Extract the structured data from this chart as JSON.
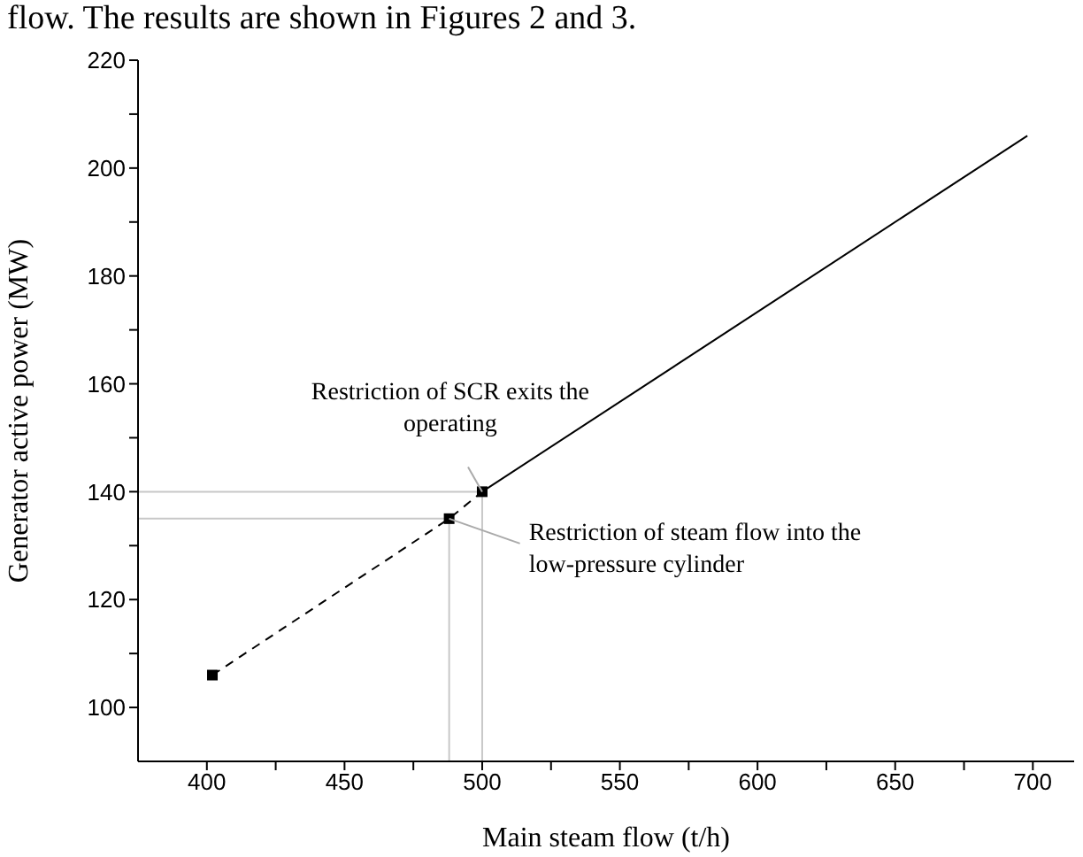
{
  "chart_data": {
    "type": "line",
    "xlabel": "Main steam flow (t/h)",
    "ylabel": "Generator active power (MW)",
    "xlim": [
      375,
      715
    ],
    "ylim": [
      90,
      220
    ],
    "xticks": [
      400,
      {
        "value": 425,
        "label": null
      },
      450,
      {
        "value": 475,
        "label": null
      },
      500,
      {
        "value": 525,
        "label": null
      },
      550,
      {
        "value": 575,
        "label": null
      },
      600,
      {
        "value": 625,
        "label": null
      },
      650,
      {
        "value": 675,
        "label": null
      },
      700
    ],
    "yticks": [
      100,
      {
        "value": 110,
        "label": null
      },
      120,
      {
        "value": 130,
        "label": null
      },
      140,
      {
        "value": 150,
        "label": null
      },
      160,
      {
        "value": 170,
        "label": null
      },
      180,
      {
        "value": 190,
        "label": null
      },
      200,
      {
        "value": 210,
        "label": null
      },
      220
    ],
    "series": [
      {
        "color": "#000000",
        "x": [
          402,
          488,
          500
        ],
        "values": [
          106,
          135,
          140
        ],
        "line_style": "dashed",
        "marker": "square"
      },
      {
        "color": "#000000",
        "x": [
          500,
          698
        ],
        "values": [
          140,
          206
        ],
        "line_style": "solid",
        "marker": "none"
      }
    ],
    "ref_lines": [
      {
        "axis": "y",
        "value": 140,
        "color": "#c8c8c8"
      },
      {
        "axis": "y",
        "value": 135,
        "color": "#c8c8c8"
      },
      {
        "axis": "x",
        "value": 488,
        "color": "#c8c8c8"
      },
      {
        "axis": "x",
        "value": 500,
        "color": "#c8c8c8"
      }
    ],
    "annotations": [
      "flow. The results are shown in Figures 2 and 3.",
      {
        "text": "Restriction of SCR exits the operating",
        "x": 500,
        "y": 140
      },
      {
        "text": "Restriction of steam flow into the low-pressure cylinder",
        "x": 488,
        "y": 135
      }
    ]
  }
}
